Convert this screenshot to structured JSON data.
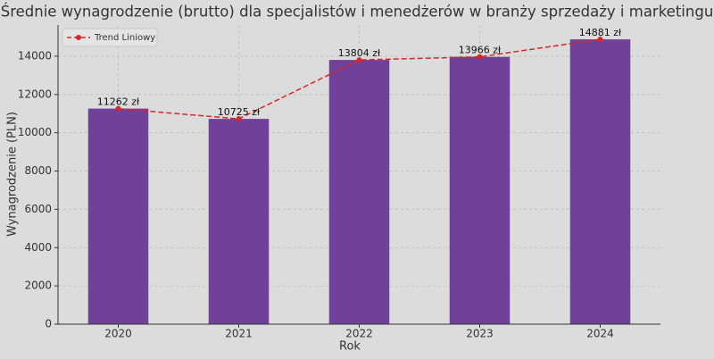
{
  "chart_data": {
    "type": "bar",
    "title": "Średnie wynagrodzenie (brutto) dla specjalistów i menedżerów w branży sprzedaży i marketingu",
    "x_label": "Rok",
    "y_label": "Wynagrodzenie (PLN)",
    "categories": [
      "2020",
      "2021",
      "2022",
      "2023",
      "2024"
    ],
    "values": [
      11262,
      10725,
      13804,
      13966,
      14881
    ],
    "value_labels": [
      "11262 zł",
      "10725 zł",
      "13804 zł",
      "13966 zł",
      "14881 zł"
    ],
    "color": "#71419a",
    "trend_line": {
      "name": "Trend Liniowy",
      "color": "#d62728"
    },
    "ylim": [
      0,
      15630
    ],
    "yticks": [
      0,
      2000,
      4000,
      6000,
      8000,
      10000,
      12000,
      14000
    ],
    "grid": true,
    "legend": "upper left"
  }
}
